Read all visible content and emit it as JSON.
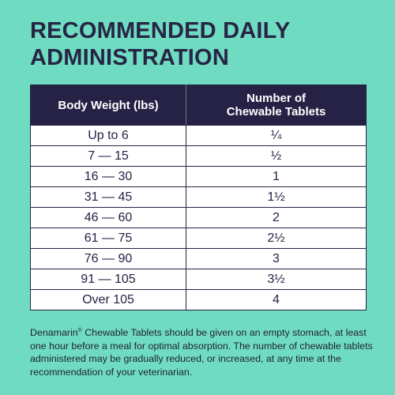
{
  "title": {
    "line1": "RECOMMENDED DAILY",
    "line2": "ADMINISTRATION"
  },
  "table": {
    "headers": {
      "weight": "Body Weight (lbs)",
      "tablets_line1": "Number of",
      "tablets_line2": "Chewable Tablets"
    },
    "rows": [
      {
        "weight": "Up to 6",
        "tablets": "¼"
      },
      {
        "weight": "7  —  15",
        "tablets": "½"
      },
      {
        "weight": "16  —  30",
        "tablets": "1"
      },
      {
        "weight": "31  —  45",
        "tablets": "1½"
      },
      {
        "weight": "46  —  60",
        "tablets": "2"
      },
      {
        "weight": "61  —  75",
        "tablets": "2½"
      },
      {
        "weight": "76  —  90",
        "tablets": "3"
      },
      {
        "weight": "91  —  105",
        "tablets": "3½"
      },
      {
        "weight": "Over 105",
        "tablets": "4"
      }
    ]
  },
  "footnote": {
    "brand": "Denamarin",
    "mark": "®",
    "text": " Chewable Tablets should be given on an empty stomach, at least one hour before a meal for optimal absorption. The number of chewable tablets administered may be gradually reduced, or increased, at any time at the recommendation of your veterinarian."
  },
  "colors": {
    "background": "#6fdcc1",
    "navy": "#262245",
    "cell": "#ffffff"
  }
}
